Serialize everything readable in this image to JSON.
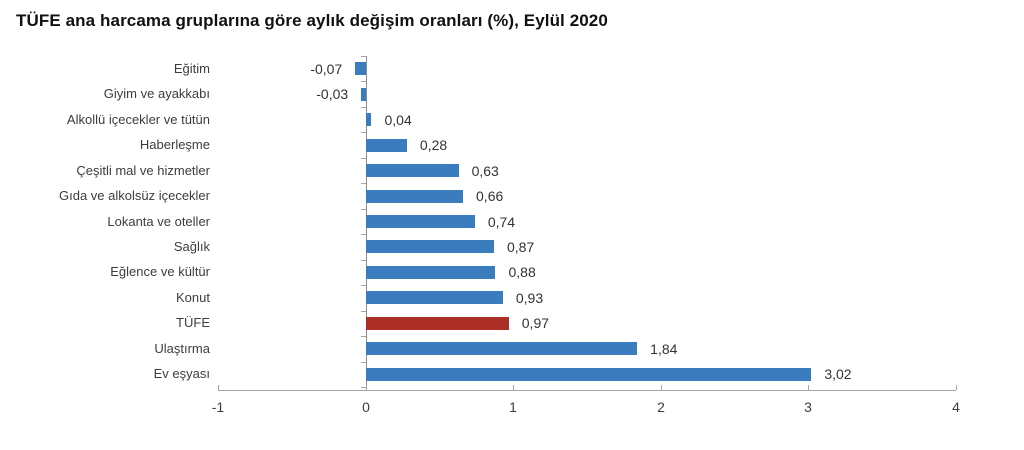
{
  "chart_data": {
    "type": "bar",
    "orientation": "horizontal",
    "title": "TÜFE ana harcama gruplarına göre aylık değişim oranları (%), Eylül 2020",
    "categories": [
      "Eğitim",
      "Giyim ve ayakkabı",
      "Alkollü içecekler ve tütün",
      "Haberleşme",
      "Çeşitli mal ve hizmetler",
      "Gıda ve alkolsüz içecekler",
      "Lokanta ve oteller",
      "Sağlık",
      "Eğlence ve kültür",
      "Konut",
      "TÜFE",
      "Ulaştırma",
      "Ev eşyası"
    ],
    "values": [
      -0.07,
      -0.03,
      0.04,
      0.28,
      0.63,
      0.66,
      0.74,
      0.87,
      0.88,
      0.93,
      0.97,
      1.84,
      3.02
    ],
    "value_labels": [
      "-0,07",
      "-0,03",
      "0,04",
      "0,28",
      "0,63",
      "0,66",
      "0,74",
      "0,87",
      "0,88",
      "0,93",
      "0,97",
      "1,84",
      "3,02"
    ],
    "highlight_category": "TÜFE",
    "xlabel": "",
    "ylabel": "",
    "xlim": [
      -1,
      4
    ],
    "x_ticks": [
      -1,
      0,
      1,
      2,
      3,
      4
    ],
    "x_tick_labels": [
      "-1",
      "0",
      "1",
      "2",
      "3",
      "4"
    ],
    "grid": false,
    "legend": false,
    "colors": {
      "bar": "#3A7CBE",
      "highlight": "#AB2F26",
      "axis": "#A6A6A6",
      "text": "#3D3D3D"
    }
  }
}
